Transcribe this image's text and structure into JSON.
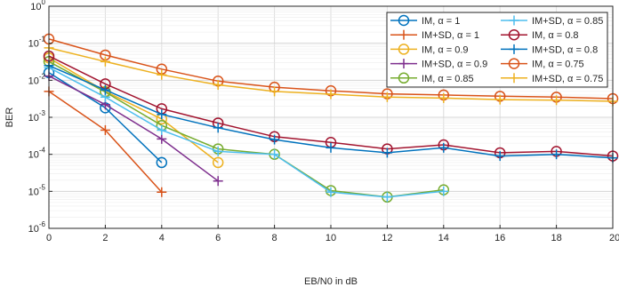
{
  "chart_data": {
    "type": "line",
    "xlabel": "EB/N0 in dB",
    "ylabel": "BER",
    "xlim": [
      0,
      20
    ],
    "ylim": [
      1e-06,
      1
    ],
    "y_scale": "log",
    "grid": true,
    "legend_position": "top-right",
    "x_ticks": [
      "0",
      "2",
      "4",
      "6",
      "8",
      "10",
      "12",
      "14",
      "16",
      "18",
      "20"
    ],
    "y_ticks": [
      {
        "base": "10",
        "exp": "0",
        "value": 1
      },
      {
        "base": "10",
        "exp": "-1",
        "value": 0.1
      },
      {
        "base": "10",
        "exp": "-2",
        "value": 0.01
      },
      {
        "base": "10",
        "exp": "-3",
        "value": 0.001
      },
      {
        "base": "10",
        "exp": "-4",
        "value": 0.0001
      },
      {
        "base": "10",
        "exp": "-5",
        "value": 1e-05
      },
      {
        "base": "10",
        "exp": "-6",
        "value": 1e-06
      }
    ],
    "series": [
      {
        "name": "IM, α = 1",
        "color": "#0072BD",
        "marker": "circle",
        "x": [
          0,
          2,
          4
        ],
        "y": [
          0.016,
          0.0018,
          6e-05
        ]
      },
      {
        "name": "IM+SD, α = 1",
        "color": "#D95319",
        "marker": "plus",
        "x": [
          0,
          2,
          4
        ],
        "y": [
          0.005,
          0.00045,
          9.5e-06
        ]
      },
      {
        "name": "IM, α = 0.9",
        "color": "#EDB120",
        "marker": "circle",
        "x": [
          0,
          2,
          4,
          6
        ],
        "y": [
          0.04,
          0.005,
          0.0009,
          6e-05
        ]
      },
      {
        "name": "IM+SD, α = 0.9",
        "color": "#7E2F8E",
        "marker": "plus",
        "x": [
          0,
          2,
          4,
          6
        ],
        "y": [
          0.013,
          0.0022,
          0.00026,
          1.9e-05
        ]
      },
      {
        "name": "IM, α = 0.85",
        "color": "#77AC30",
        "marker": "circle",
        "x": [
          0,
          2,
          4,
          6,
          8,
          10,
          12,
          14
        ],
        "y": [
          0.032,
          0.0048,
          0.0006,
          0.00014,
          0.0001,
          1.05e-05,
          7e-06,
          1.1e-05
        ]
      },
      {
        "name": "IM+SD, α = 0.85",
        "color": "#4DBEEE",
        "marker": "plus",
        "x": [
          0,
          2,
          4,
          6,
          8,
          10,
          12,
          14
        ],
        "y": [
          0.022,
          0.0035,
          0.00045,
          0.00012,
          0.0001,
          9.5e-06,
          7e-06,
          1e-05
        ]
      },
      {
        "name": "IM, α = 0.8",
        "color": "#A2142F",
        "marker": "circle",
        "x": [
          0,
          2,
          4,
          6,
          8,
          10,
          12,
          14,
          16,
          18,
          20
        ],
        "y": [
          0.045,
          0.008,
          0.0017,
          0.0007,
          0.0003,
          0.00021,
          0.00014,
          0.00018,
          0.00011,
          0.00012,
          9e-05
        ]
      },
      {
        "name": "IM+SD, α = 0.8",
        "color": "#0072BD",
        "marker": "plus",
        "x": [
          0,
          2,
          4,
          6,
          8,
          10,
          12,
          14,
          16,
          18,
          20
        ],
        "y": [
          0.025,
          0.0055,
          0.0012,
          0.00052,
          0.00025,
          0.00015,
          0.00011,
          0.00015,
          9e-05,
          0.0001,
          8e-05
        ]
      },
      {
        "name": "IM, α = 0.75",
        "color": "#D95319",
        "marker": "circle",
        "x": [
          0,
          2,
          4,
          6,
          8,
          10,
          12,
          14,
          16,
          18,
          20
        ],
        "y": [
          0.13,
          0.048,
          0.02,
          0.0095,
          0.0065,
          0.0052,
          0.0043,
          0.004,
          0.0037,
          0.0035,
          0.0032
        ]
      },
      {
        "name": "IM+SD, α = 0.75",
        "color": "#EDB120",
        "marker": "plus",
        "x": [
          0,
          2,
          4,
          6,
          8,
          10,
          12,
          14,
          16,
          18,
          20
        ],
        "y": [
          0.075,
          0.032,
          0.014,
          0.0075,
          0.005,
          0.0042,
          0.0035,
          0.0033,
          0.003,
          0.0029,
          0.0027
        ]
      }
    ]
  }
}
